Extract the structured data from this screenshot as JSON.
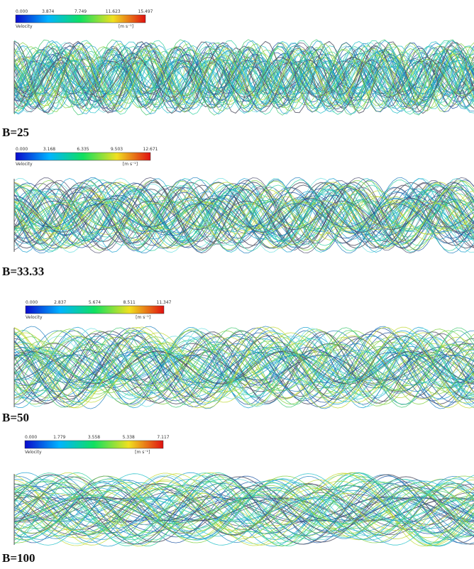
{
  "panels": [
    {
      "colorbar": {
        "ticks": [
          "0.000",
          "3.874",
          "7.749",
          "11.623",
          "15.497"
        ],
        "quantity": "Velocity",
        "unit": "[m s⁻¹]"
      },
      "label": "B=25"
    },
    {
      "colorbar": {
        "ticks": [
          "0.000",
          "3.168",
          "6.335",
          "9.503",
          "12.671"
        ],
        "quantity": "Velocity",
        "unit": "[m s⁻¹]"
      },
      "label": "B=33.33"
    },
    {
      "colorbar": {
        "ticks": [
          "0.000",
          "2.837",
          "5.674",
          "8.511",
          "11.347"
        ],
        "quantity": "Velocity",
        "unit": "[m s⁻¹]"
      },
      "label": "B=50"
    },
    {
      "colorbar": {
        "ticks": [
          "0.000",
          "1.779",
          "3.558",
          "5.338",
          "7.117"
        ],
        "quantity": "Velocity",
        "unit": "[m s⁻¹]"
      },
      "label": "B=100"
    }
  ]
}
